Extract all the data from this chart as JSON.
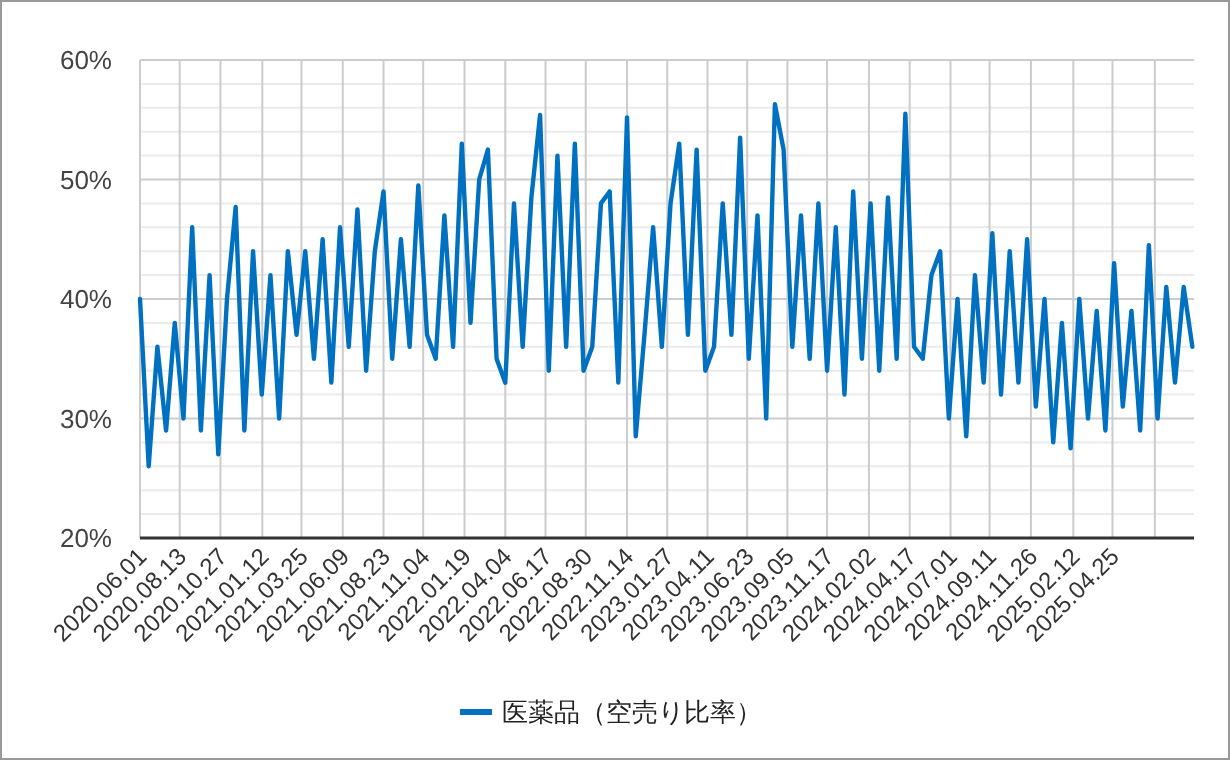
{
  "chart_data": {
    "type": "line",
    "grid": true,
    "legend": "bottom",
    "marker": "none",
    "line_style": "solid",
    "xlim": [
      "2020-06-01",
      "2025-09-22"
    ],
    "ylim": [
      20,
      60
    ],
    "yticks": [
      {
        "value": 20,
        "label": "20%"
      },
      {
        "value": 22,
        "label": null
      },
      {
        "value": 24,
        "label": null
      },
      {
        "value": 26,
        "label": null
      },
      {
        "value": 28,
        "label": null
      },
      {
        "value": 30,
        "label": "30%"
      },
      {
        "value": 32,
        "label": null
      },
      {
        "value": 34,
        "label": null
      },
      {
        "value": 36,
        "label": null
      },
      {
        "value": 38,
        "label": null
      },
      {
        "value": 40,
        "label": "40%"
      },
      {
        "value": 42,
        "label": null
      },
      {
        "value": 44,
        "label": null
      },
      {
        "value": 46,
        "label": null
      },
      {
        "value": 48,
        "label": null
      },
      {
        "value": 50,
        "label": "50%"
      },
      {
        "value": 52,
        "label": null
      },
      {
        "value": 54,
        "label": null
      },
      {
        "value": 56,
        "label": null
      },
      {
        "value": 58,
        "label": null
      },
      {
        "value": 60,
        "label": "60%"
      }
    ],
    "xticks": [
      {
        "value": "2020-06-01",
        "label": "2020.06.01"
      },
      {
        "value": "2020-08-13",
        "label": "2020.08.13"
      },
      {
        "value": "2020-10-27",
        "label": "2020.10.27"
      },
      {
        "value": "2021-01-12",
        "label": "2021.01.12"
      },
      {
        "value": "2021-03-25",
        "label": "2021.03.25"
      },
      {
        "value": "2021-06-09",
        "label": "2021.06.09"
      },
      {
        "value": "2021-08-23",
        "label": "2021.08.23"
      },
      {
        "value": "2021-11-04",
        "label": "2021.11.04"
      },
      {
        "value": "2022-01-19",
        "label": "2022.01.19"
      },
      {
        "value": "2022-04-04",
        "label": "2022.04.04"
      },
      {
        "value": "2022-06-17",
        "label": "2022.06.17"
      },
      {
        "value": "2022-08-30",
        "label": "2022.08.30"
      },
      {
        "value": "2022-11-14",
        "label": "2022.11.14"
      },
      {
        "value": "2023-01-27",
        "label": "2023.01.27"
      },
      {
        "value": "2023-04-11",
        "label": "2023.04.11"
      },
      {
        "value": "2023-06-23",
        "label": "2023.06.23"
      },
      {
        "value": "2023-09-05",
        "label": "2023.09.05"
      },
      {
        "value": "2023-11-17",
        "label": "2023.11.17"
      },
      {
        "value": "2024-02-02",
        "label": "2024.02.02"
      },
      {
        "value": "2024-04-17",
        "label": "2024.04.17"
      },
      {
        "value": "2024-07-01",
        "label": "2024.07.01"
      },
      {
        "value": "2024-09-11",
        "label": "2024.09.11"
      },
      {
        "value": "2024-11-26",
        "label": "2024.11.26"
      },
      {
        "value": "2025-02-12",
        "label": "2025.02.12"
      },
      {
        "value": "2025-04-25",
        "label": "2025.04.25"
      },
      {
        "value": "2025-07-12",
        "label": null
      }
    ],
    "x": [
      "2020-06-01",
      "2020-06-17",
      "2020-07-03",
      "2020-07-19",
      "2020-08-04",
      "2020-08-20",
      "2020-09-05",
      "2020-09-21",
      "2020-10-07",
      "2020-10-23",
      "2020-11-08",
      "2020-11-24",
      "2020-12-10",
      "2020-12-26",
      "2021-01-11",
      "2021-01-27",
      "2021-02-12",
      "2021-02-28",
      "2021-03-16",
      "2021-04-01",
      "2021-04-17",
      "2021-05-03",
      "2021-05-19",
      "2021-06-04",
      "2021-06-20",
      "2021-07-06",
      "2021-07-22",
      "2021-08-07",
      "2021-08-23",
      "2021-09-08",
      "2021-09-24",
      "2021-10-10",
      "2021-10-26",
      "2021-11-11",
      "2021-11-27",
      "2021-12-13",
      "2021-12-29",
      "2022-01-14",
      "2022-01-30",
      "2022-02-15",
      "2022-03-03",
      "2022-03-19",
      "2022-04-04",
      "2022-04-20",
      "2022-05-06",
      "2022-05-22",
      "2022-06-07",
      "2022-06-23",
      "2022-07-09",
      "2022-07-25",
      "2022-08-10",
      "2022-08-26",
      "2022-09-11",
      "2022-09-27",
      "2022-10-13",
      "2022-10-29",
      "2022-11-14",
      "2022-11-30",
      "2022-12-16",
      "2023-01-01",
      "2023-01-17",
      "2023-02-02",
      "2023-02-18",
      "2023-03-06",
      "2023-03-22",
      "2023-04-07",
      "2023-04-23",
      "2023-05-09",
      "2023-05-25",
      "2023-06-10",
      "2023-06-26",
      "2023-07-12",
      "2023-07-28",
      "2023-08-13",
      "2023-08-29",
      "2023-09-14",
      "2023-09-30",
      "2023-10-16",
      "2023-11-01",
      "2023-11-17",
      "2023-12-03",
      "2023-12-19",
      "2024-01-04",
      "2024-01-20",
      "2024-02-05",
      "2024-02-21",
      "2024-03-08",
      "2024-03-24",
      "2024-04-09",
      "2024-04-25",
      "2024-05-11",
      "2024-05-27",
      "2024-06-12",
      "2024-06-28",
      "2024-07-14",
      "2024-07-30",
      "2024-08-15",
      "2024-08-31",
      "2024-09-16",
      "2024-10-02",
      "2024-10-18",
      "2024-11-03",
      "2024-11-19",
      "2024-12-05",
      "2024-12-21",
      "2025-01-06",
      "2025-01-22",
      "2025-02-07",
      "2025-02-23",
      "2025-03-11",
      "2025-03-27",
      "2025-04-12",
      "2025-04-28",
      "2025-05-14",
      "2025-05-30",
      "2025-06-15",
      "2025-07-01",
      "2025-07-17",
      "2025-08-02",
      "2025-08-18",
      "2025-09-03",
      "2025-09-19"
    ],
    "series": [
      {
        "name": "医薬品（空売り比率）",
        "color": "#0070c0",
        "values": [
          40,
          26,
          36,
          29,
          38,
          30,
          46,
          29,
          42,
          27,
          40,
          47.7,
          29,
          44,
          32,
          42,
          30,
          44,
          37,
          44,
          35,
          45,
          33,
          46,
          36,
          47.5,
          34,
          44,
          49,
          35,
          45,
          36,
          49.5,
          37,
          35,
          47,
          36,
          53,
          38,
          50,
          52.5,
          35,
          33,
          48,
          36,
          48.5,
          55.4,
          34,
          52,
          36,
          53,
          34,
          36,
          48,
          49,
          33,
          55.2,
          28.5,
          37,
          46,
          36,
          48,
          53,
          37,
          52.5,
          34,
          36,
          48,
          37,
          53.5,
          35,
          47,
          30,
          56.3,
          52.5,
          36,
          47,
          35,
          48,
          34,
          46,
          32,
          49,
          35,
          48,
          34,
          48.5,
          35,
          55.5,
          36,
          35,
          42,
          44,
          30,
          40,
          28.5,
          42,
          33,
          45.5,
          32,
          44,
          33,
          45,
          31,
          40,
          28,
          38,
          27.5,
          40,
          30,
          39,
          29,
          43,
          31,
          39,
          29,
          44.5,
          30,
          41,
          33,
          41,
          36
        ]
      }
    ]
  }
}
